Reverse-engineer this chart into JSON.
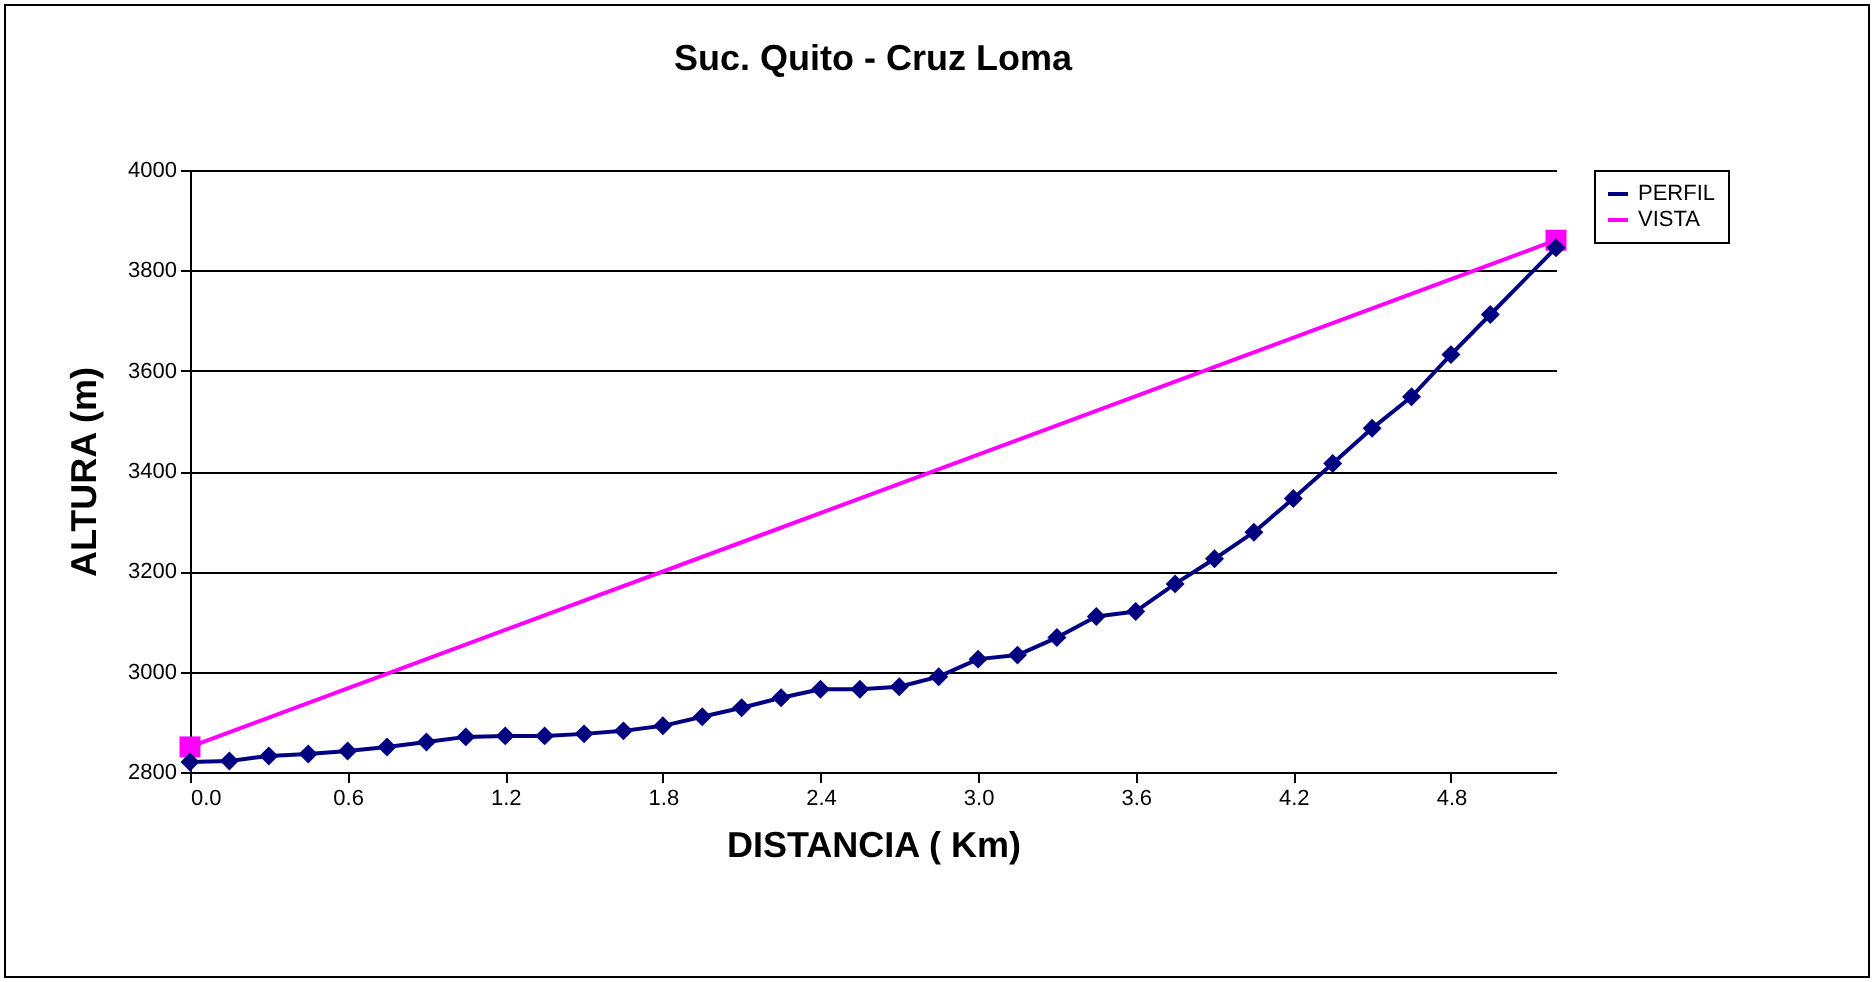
{
  "chart_data": {
    "type": "line",
    "title": "Suc. Quito - Cruz Loma",
    "xlabel": "DISTANCIA ( Km)",
    "ylabel": "ALTURA (m)",
    "xlim": [
      0,
      5.2
    ],
    "xticks": [
      {
        "value": 0,
        "label": "0.0"
      },
      {
        "value": 0.6,
        "label": "0.6"
      },
      {
        "value": 1.2,
        "label": "1.2"
      },
      {
        "value": 1.8,
        "label": "1.8"
      },
      {
        "value": 2.4,
        "label": "2.4"
      },
      {
        "value": 3,
        "label": "3.0"
      },
      {
        "value": 3.6,
        "label": "3.6"
      },
      {
        "value": 4.2,
        "label": "4.2"
      },
      {
        "value": 4.8,
        "label": "4.8"
      }
    ],
    "ylim": [
      2800,
      4000
    ],
    "yticks": [
      2800,
      3000,
      3200,
      3400,
      3600,
      3800,
      4000
    ],
    "grid": "y",
    "legend": "right",
    "line_style": "solid",
    "series": [
      {
        "name": "PERFIL",
        "color": "#000080",
        "marker": "diamond",
        "x": [
          0,
          0.15,
          0.3,
          0.45,
          0.6,
          0.75,
          0.9,
          1.05,
          1.2,
          1.35,
          1.5,
          1.65,
          1.8,
          1.95,
          2.1,
          2.25,
          2.4,
          2.55,
          2.7,
          2.85,
          3,
          3.15,
          3.3,
          3.45,
          3.6,
          3.75,
          3.9,
          4.05,
          4.2,
          4.35,
          4.5,
          4.65,
          4.8,
          4.95,
          5.2
        ],
        "values": [
          2820,
          2822,
          2832,
          2836,
          2842,
          2850,
          2860,
          2870,
          2872,
          2872,
          2876,
          2882,
          2892,
          2910,
          2928,
          2948,
          2965,
          2965,
          2970,
          2990,
          3025,
          3033,
          3068,
          3110,
          3120,
          3175,
          3225,
          3278,
          3345,
          3415,
          3485,
          3548,
          3632,
          3712,
          3845
        ]
      },
      {
        "name": "VISTA",
        "color": "#ff00ff",
        "marker": "square",
        "x": [
          0,
          5.2
        ],
        "values": [
          2850,
          3860
        ]
      }
    ]
  }
}
